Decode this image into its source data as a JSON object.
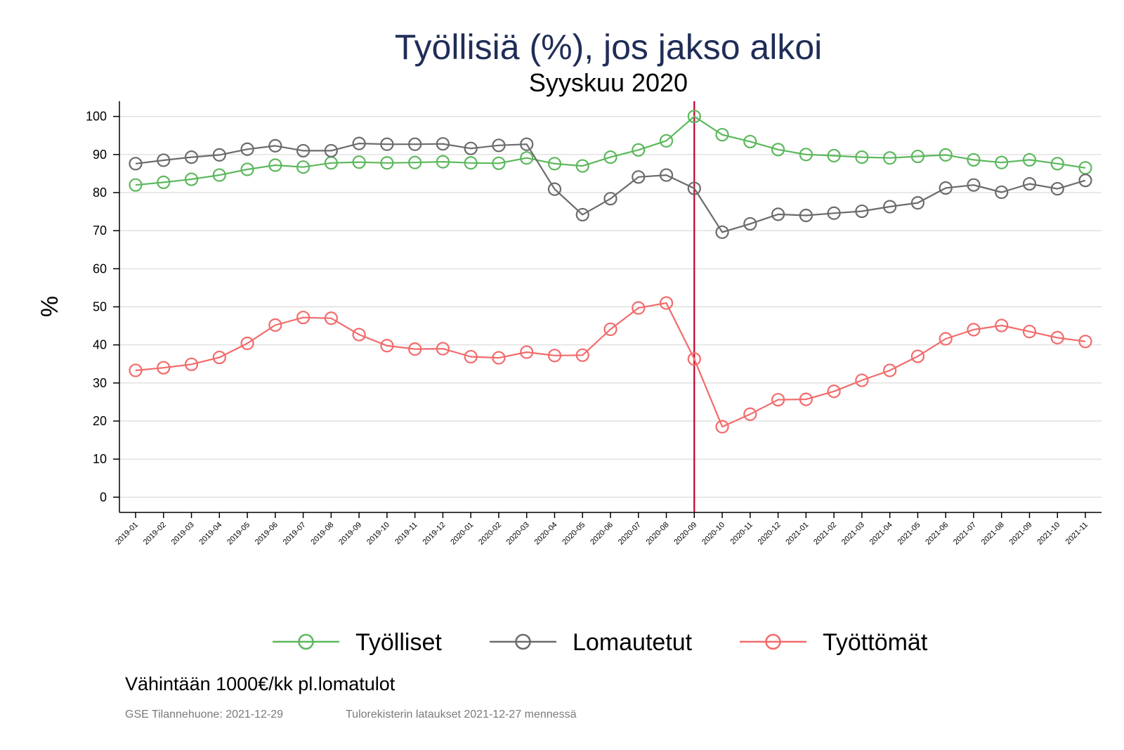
{
  "chart_data": {
    "type": "line",
    "title": "Työllisiä (%), jos jakso alkoi",
    "subtitle": "Syyskuu 2020",
    "ylabel": "%",
    "xlabel": "",
    "ylim": [
      -4,
      104
    ],
    "yticks": [
      0,
      10,
      20,
      30,
      40,
      50,
      60,
      70,
      80,
      90,
      100
    ],
    "grid": true,
    "legend_position": "bottom",
    "marker": "hollow-circle",
    "reference_line": {
      "x": "2020-09",
      "color": "#c0002a"
    },
    "categories": [
      "2019-01",
      "2019-02",
      "2019-03",
      "2019-04",
      "2019-05",
      "2019-06",
      "2019-07",
      "2019-08",
      "2019-09",
      "2019-10",
      "2019-11",
      "2019-12",
      "2020-01",
      "2020-02",
      "2020-03",
      "2020-04",
      "2020-05",
      "2020-06",
      "2020-07",
      "2020-08",
      "2020-09",
      "2020-10",
      "2020-11",
      "2020-12",
      "2021-01",
      "2021-02",
      "2021-03",
      "2021-04",
      "2021-05",
      "2021-06",
      "2021-07",
      "2021-08",
      "2021-09",
      "2021-10",
      "2021-11"
    ],
    "series": [
      {
        "name": "Työlliset",
        "color": "#5cb85c",
        "values": [
          82,
          82.7,
          83.5,
          84.6,
          86.1,
          87.2,
          86.7,
          87.8,
          88,
          87.8,
          87.9,
          88.1,
          87.8,
          87.7,
          89.1,
          87.6,
          87,
          89.3,
          91.2,
          93.6,
          100,
          95.2,
          93.4,
          91.3,
          90,
          89.7,
          89.3,
          89.1,
          89.5,
          89.9,
          88.6,
          87.9,
          88.6,
          87.6,
          86.5
        ]
      },
      {
        "name": "Lomautetut",
        "color": "#6b6b6b",
        "values": [
          87.6,
          88.5,
          89.3,
          89.9,
          91.4,
          92.3,
          91,
          91,
          92.9,
          92.7,
          92.7,
          92.8,
          91.6,
          92.4,
          92.7,
          80.9,
          74.2,
          78.4,
          84.1,
          84.6,
          81.1,
          69.6,
          71.8,
          74.3,
          74,
          74.6,
          75.1,
          76.3,
          77.3,
          81.2,
          82,
          80.1,
          82.3,
          81,
          83.2
        ]
      },
      {
        "name": "Työttömät",
        "color": "#f26b6b",
        "values": [
          33.3,
          34,
          34.9,
          36.7,
          40.4,
          45.2,
          47.2,
          47,
          42.7,
          39.8,
          38.9,
          39,
          36.9,
          36.6,
          38.1,
          37.2,
          37.3,
          44.1,
          49.7,
          51,
          36.3,
          18.5,
          21.8,
          25.6,
          25.7,
          27.8,
          30.7,
          33.3,
          37,
          41.6,
          44,
          45.1,
          43.5,
          41.9,
          40.9
        ]
      }
    ]
  },
  "footer": {
    "note": "Vähintään 1000€/kk pl.lomatulot",
    "source_left": "GSE Tilannehuone: 2021-12-29",
    "source_right": "Tulorekisterin lataukset 2021-12-27 mennessä"
  }
}
